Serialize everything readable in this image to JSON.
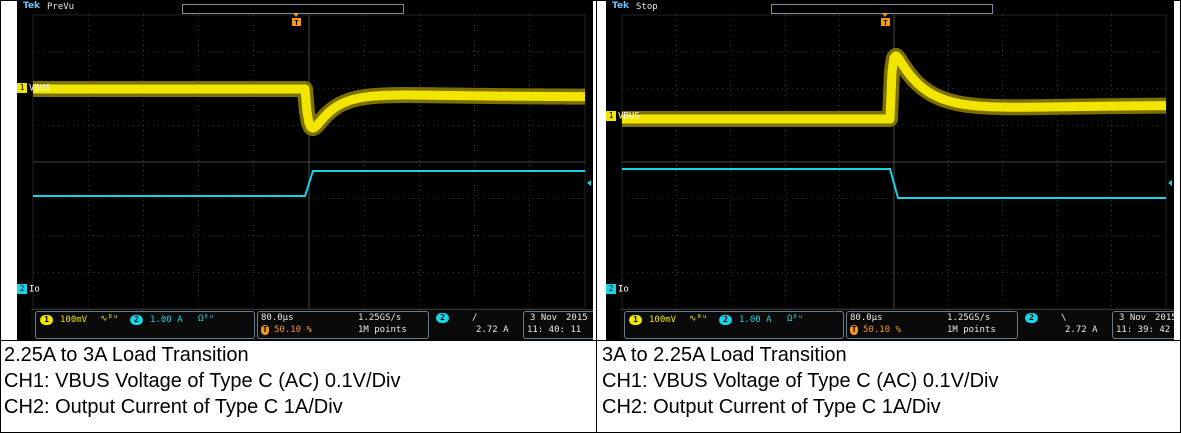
{
  "scopes": [
    {
      "brand": "Tek",
      "mode": "PreVu",
      "ch1_label": "VBUS",
      "ch2_label": "Io",
      "ch1_num": "1",
      "ch2_num": "2",
      "ch1_scale": "100mV",
      "ch2_scale": "1.00 A",
      "ch1_coupling": "∿⁸ᵘ",
      "ch2_coupling": "Ω⁸ᵘ",
      "timebase": "80.0µs",
      "trigger_pos": "50.10 %",
      "sample_rate": "1.25GS/s",
      "record_len": "1M points",
      "trig_source": "2",
      "trig_slope": "/",
      "trig_level": "2.72 A",
      "date": "3 Nov",
      "year": "2015",
      "time": "11: 40: 11"
    },
    {
      "brand": "Tek",
      "mode": "Stop",
      "ch1_label": "VBUS",
      "ch2_label": "Io",
      "ch1_num": "1",
      "ch2_num": "2",
      "ch1_scale": "100mV",
      "ch2_scale": "1.00 A",
      "ch1_coupling": "∿⁸ᵘ",
      "ch2_coupling": "Ω⁸ᵘ",
      "timebase": "80.0µs",
      "trigger_pos": "50.10 %",
      "sample_rate": "1.25GS/s",
      "record_len": "1M points",
      "trig_source": "2",
      "trig_slope": "\\",
      "trig_level": "2.72 A",
      "date": "3 Nov",
      "year": "2015",
      "time": "11: 39: 42"
    }
  ],
  "captions": [
    {
      "line1": "2.25A to 3A Load Transition",
      "line2": "CH1: VBUS Voltage of Type C (AC) 0.1V/Div",
      "line3": "CH2: Output Current of Type C 1A/Div"
    },
    {
      "line1": "3A to 2.25A Load Transition",
      "line2": "CH1: VBUS Voltage of Type C (AC) 0.1V/Div",
      "line3": "CH2: Output Current of Type C 1A/Div"
    }
  ],
  "colors": {
    "ch1": "#f2e600",
    "ch2": "#19d3e6",
    "trigger": "#f39a1e",
    "grid": "#5a5a5a"
  }
}
